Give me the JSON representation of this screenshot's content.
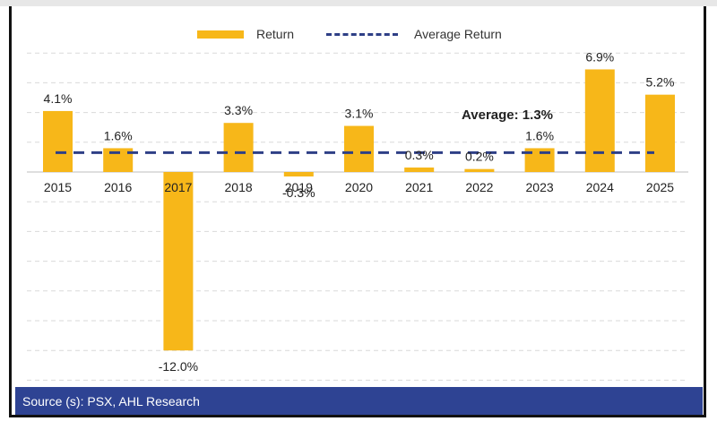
{
  "colors": {
    "bar": "#F7B719",
    "average_line": "#2E3F86",
    "source_band": "#2E4393",
    "grid": "#D9D9D9"
  },
  "legend": {
    "bar_label": "Return",
    "line_label": "Average Return"
  },
  "source": "Source (s): PSX, AHL Research",
  "chart_data": {
    "type": "bar",
    "title": "",
    "xlabel": "",
    "ylabel": "",
    "categories": [
      "2015",
      "2016",
      "2017",
      "2018",
      "2019",
      "2020",
      "2021",
      "2022",
      "2023",
      "2024",
      "2025"
    ],
    "series": [
      {
        "name": "Return",
        "values": [
          4.1,
          1.6,
          -12.0,
          3.3,
          -0.3,
          3.1,
          0.3,
          0.2,
          1.6,
          6.9,
          5.2
        ],
        "labels": [
          "4.1%",
          "1.6%",
          "-12.0%",
          "3.3%",
          "-0.3%",
          "3.1%",
          "0.3%",
          "0.2%",
          "1.6%",
          "6.9%",
          "5.2%"
        ]
      }
    ],
    "average": {
      "name": "Average Return",
      "value": 1.3,
      "label": "Average: 1.3%"
    },
    "ylim": [
      -14,
      10
    ],
    "grid": true,
    "legend_position": "top"
  }
}
